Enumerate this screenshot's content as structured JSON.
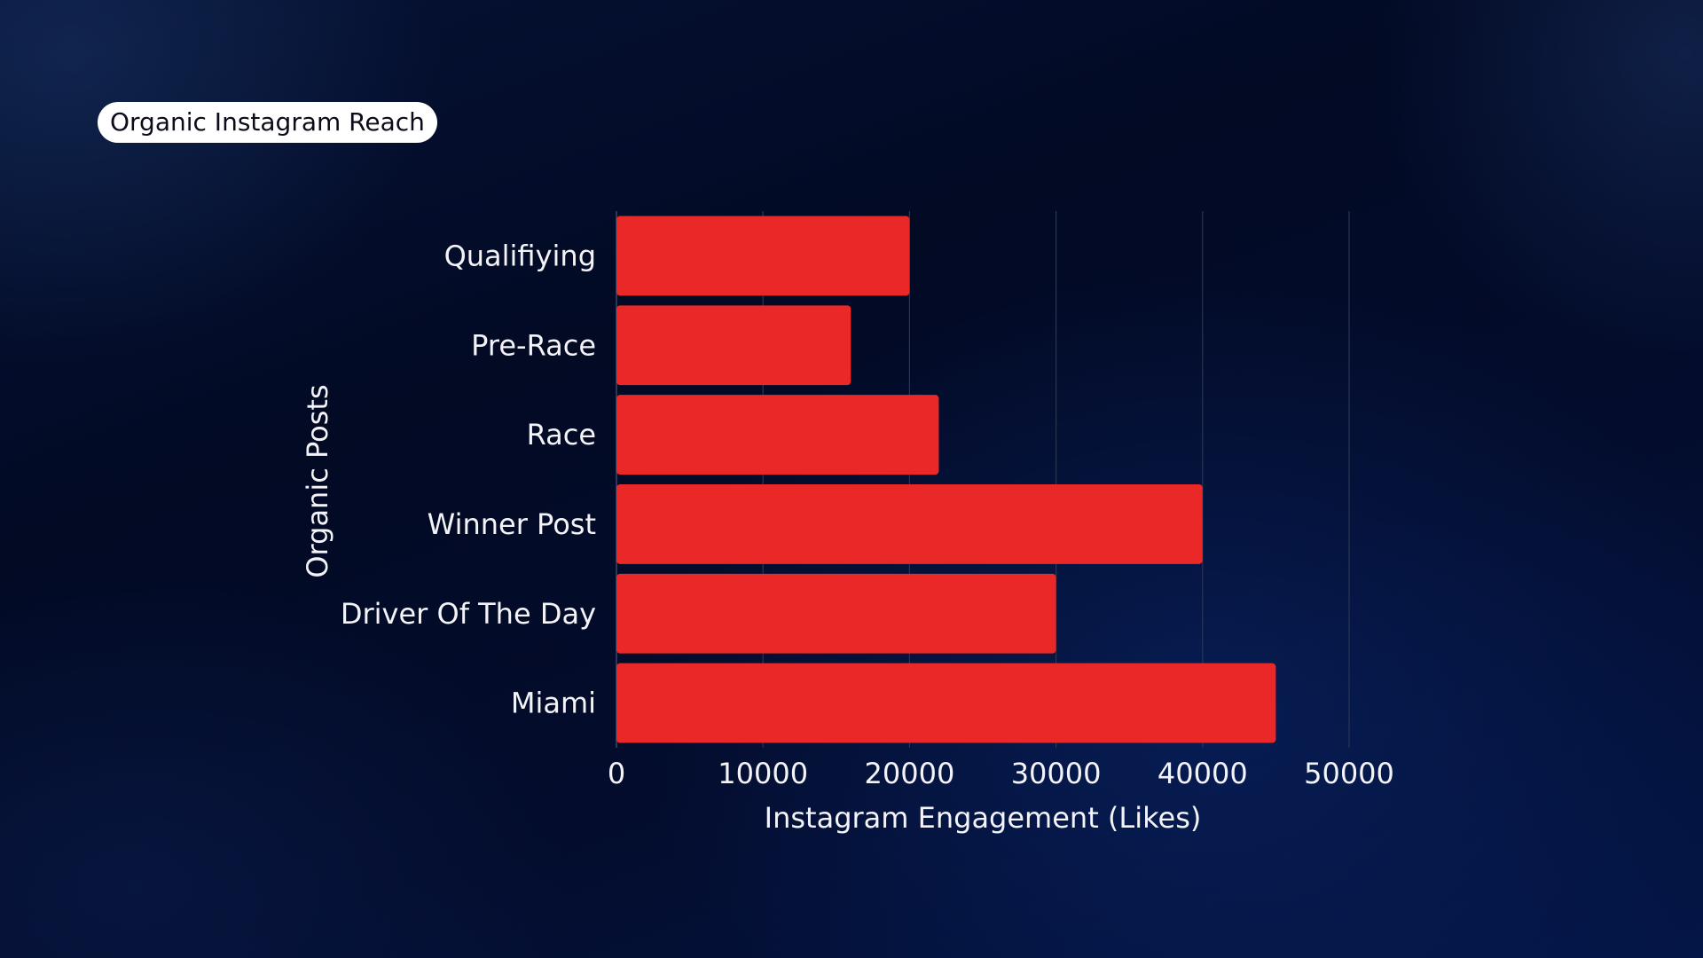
{
  "title": "Organic Instagram Reach",
  "colors": {
    "bar": "#ea2828",
    "grid": "#2a3550",
    "text": "#f4f4f8",
    "pill_background": "#ffffff"
  },
  "chart_data": {
    "type": "bar",
    "orientation": "horizontal",
    "categories": [
      "Qualifiying",
      "Pre-Race",
      "Race",
      "Winner Post",
      "Driver Of The Day",
      "Miami"
    ],
    "values": [
      20000,
      16000,
      22000,
      40000,
      30000,
      45000
    ],
    "xlabel": "Instagram Engagement (Likes)",
    "ylabel": "Organic Posts",
    "xlim": [
      0,
      50000
    ],
    "xticks": [
      "0",
      "10000",
      "20000",
      "30000",
      "40000",
      "50000"
    ],
    "grid": true,
    "legend": "none"
  }
}
